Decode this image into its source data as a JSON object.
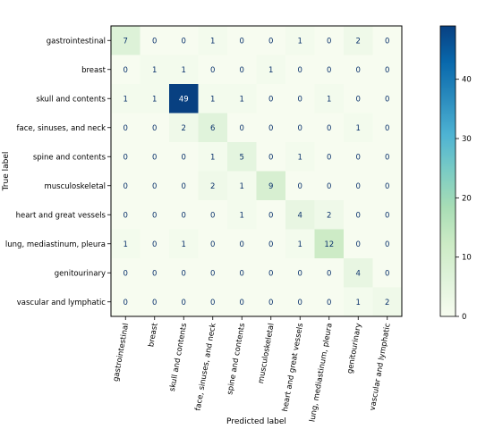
{
  "chart_data": {
    "type": "heatmap",
    "title": "",
    "xlabel": "Predicted label",
    "ylabel": "True label",
    "labels": [
      "gastrointestinal",
      "breast",
      "skull and contents",
      "face, sinuses, and neck",
      "spine and contents",
      "musculoskeletal",
      "heart and great vessels",
      "lung, mediastinum, pleura",
      "genitourinary",
      "vascular and lymphatic"
    ],
    "matrix": [
      [
        7,
        0,
        0,
        1,
        0,
        0,
        1,
        0,
        2,
        0
      ],
      [
        0,
        1,
        1,
        0,
        0,
        1,
        0,
        0,
        0,
        0
      ],
      [
        1,
        1,
        49,
        1,
        1,
        0,
        0,
        1,
        0,
        0
      ],
      [
        0,
        0,
        2,
        6,
        0,
        0,
        0,
        0,
        1,
        0
      ],
      [
        0,
        0,
        0,
        1,
        5,
        0,
        1,
        0,
        0,
        0
      ],
      [
        0,
        0,
        0,
        2,
        1,
        9,
        0,
        0,
        0,
        0
      ],
      [
        0,
        0,
        0,
        0,
        1,
        0,
        4,
        2,
        0,
        0
      ],
      [
        1,
        0,
        1,
        0,
        0,
        0,
        1,
        12,
        0,
        0
      ],
      [
        0,
        0,
        0,
        0,
        0,
        0,
        0,
        0,
        4,
        0
      ],
      [
        0,
        0,
        0,
        0,
        0,
        0,
        0,
        0,
        1,
        2
      ]
    ],
    "colormap": "GnBu",
    "colorbar": {
      "ticks": [
        0,
        10,
        20,
        30,
        40
      ],
      "min": 0,
      "max": 49
    },
    "colors": {
      "low": "#f7fcf0",
      "high": "#084081",
      "cell_text": "#08306b"
    },
    "grid": false,
    "legend": "colorbar-right"
  }
}
